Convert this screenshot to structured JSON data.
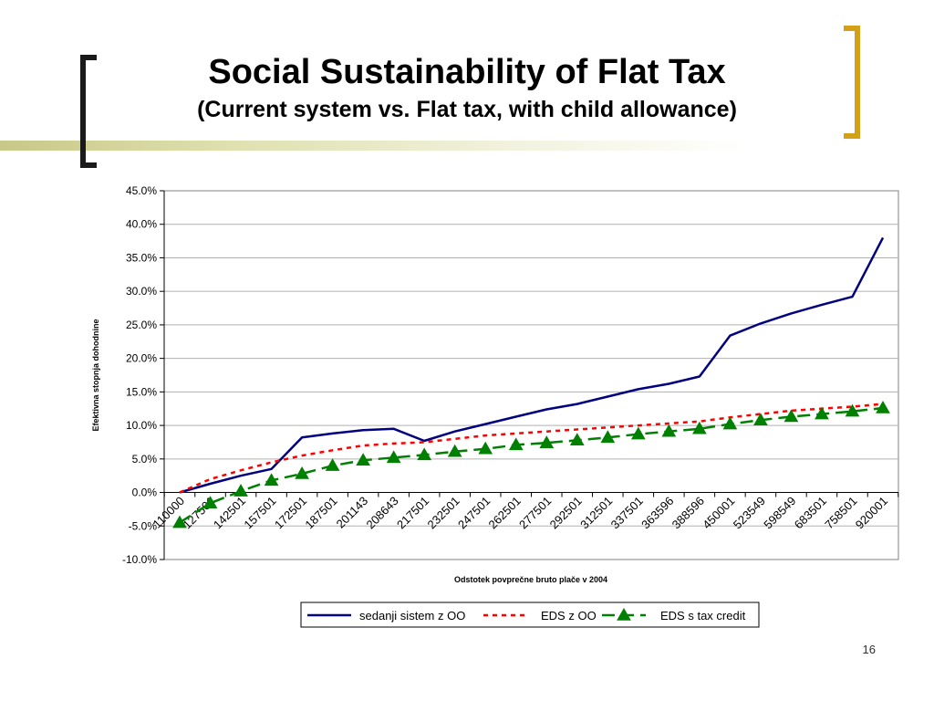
{
  "slide": {
    "title": "Social Sustainability of Flat Tax",
    "subtitle": "(Current system vs. Flat tax, with child allowance)",
    "page_number": "16",
    "colors": {
      "left_bracket": "#1a1a1a",
      "right_bracket": "#d4a017",
      "rule": "#c8c888"
    }
  },
  "chart_data": {
    "type": "line",
    "xlabel": "Odstotek povprečne bruto plače v 2004",
    "ylabel": "Efektivna stopnja dohodnine",
    "ylim": [
      -0.1,
      0.45
    ],
    "yticks": [
      "45.0%",
      "40.0%",
      "35.0%",
      "30.0%",
      "25.0%",
      "20.0%",
      "15.0%",
      "10.0%",
      "5.0%",
      "0.0%",
      "-5.0%",
      "-10.0%"
    ],
    "categories": [
      "110000",
      "127501",
      "142501",
      "157501",
      "172501",
      "187501",
      "201143",
      "208643",
      "217501",
      "232501",
      "247501",
      "262501",
      "277501",
      "292501",
      "312501",
      "337501",
      "363596",
      "388596",
      "450001",
      "523549",
      "598549",
      "683501",
      "758501",
      "920001"
    ],
    "grid": true,
    "legend_position": "bottom",
    "series": [
      {
        "name": "sedanji sistem z OO",
        "color": "#000080",
        "style": "solid",
        "values": [
          0.0,
          0.013,
          0.025,
          0.035,
          0.082,
          0.088,
          0.093,
          0.095,
          0.077,
          0.091,
          0.102,
          0.113,
          0.124,
          0.132,
          0.143,
          0.154,
          0.162,
          0.173,
          0.234,
          0.252,
          0.267,
          0.28,
          0.292,
          0.38
        ]
      },
      {
        "name": "EDS z OO",
        "color": "#ff0000",
        "style": "dashed",
        "values": [
          0.0,
          0.02,
          0.033,
          0.045,
          0.055,
          0.063,
          0.07,
          0.073,
          0.075,
          0.08,
          0.085,
          0.088,
          0.091,
          0.094,
          0.097,
          0.1,
          0.103,
          0.106,
          0.112,
          0.117,
          0.122,
          0.125,
          0.128,
          0.132
        ]
      },
      {
        "name": "EDS s tax credit",
        "color": "#008000",
        "style": "long-dash-triangle",
        "values": [
          -0.045,
          -0.016,
          0.002,
          0.018,
          0.028,
          0.04,
          0.048,
          0.052,
          0.056,
          0.061,
          0.065,
          0.071,
          0.074,
          0.078,
          0.082,
          0.087,
          0.091,
          0.095,
          0.102,
          0.108,
          0.113,
          0.117,
          0.121,
          0.126
        ]
      }
    ]
  }
}
